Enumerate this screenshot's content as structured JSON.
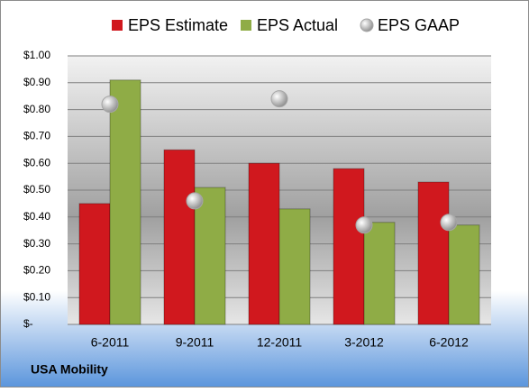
{
  "chart_data": {
    "type": "bar",
    "categories": [
      "6-2011",
      "9-2011",
      "12-2011",
      "3-2012",
      "6-2012"
    ],
    "series": [
      {
        "name": "EPS Estimate",
        "color": "#d0181e",
        "mark": "bar",
        "values": [
          0.45,
          0.65,
          0.6,
          0.58,
          0.53
        ]
      },
      {
        "name": "EPS Actual",
        "color": "#8fac46",
        "mark": "bar",
        "values": [
          0.91,
          0.51,
          0.43,
          0.38,
          0.37
        ]
      },
      {
        "name": "EPS GAAP",
        "color": "#a6a6a6",
        "mark": "circle",
        "values": [
          0.82,
          0.46,
          0.84,
          0.37,
          0.38
        ]
      }
    ],
    "ylim": [
      0,
      1
    ],
    "yticks": [
      {
        "value": 0,
        "label": "$-"
      },
      {
        "value": 0.1,
        "label": "$0.10"
      },
      {
        "value": 0.2,
        "label": "$0.20"
      },
      {
        "value": 0.3,
        "label": "$0.30"
      },
      {
        "value": 0.4,
        "label": "$0.40"
      },
      {
        "value": 0.5,
        "label": "$0.50"
      },
      {
        "value": 0.6,
        "label": "$0.60"
      },
      {
        "value": 0.7,
        "label": "$0.70"
      },
      {
        "value": 0.8,
        "label": "$0.80"
      },
      {
        "value": 0.9,
        "label": "$0.90"
      },
      {
        "value": 1,
        "label": "$1.00"
      }
    ],
    "grid": true,
    "legend": "top",
    "footer": "USA Mobility"
  }
}
